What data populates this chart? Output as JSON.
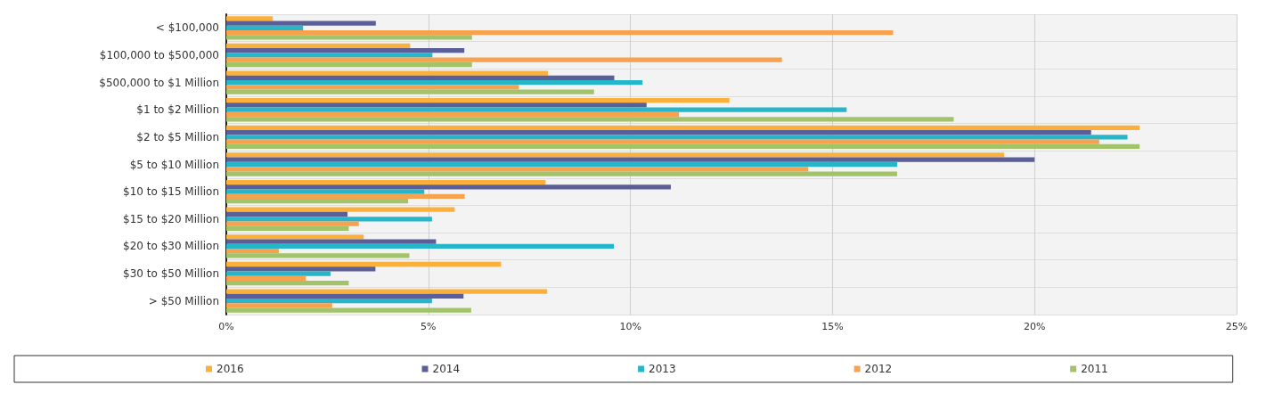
{
  "chart_data": {
    "type": "bar",
    "orientation": "horizontal",
    "categories": [
      "< $100,000",
      "$100,000 to $500,000",
      "$500,000 to $1 Million",
      "$1 to $2 Million",
      "$2 to $5 Million",
      "$5 to $10 Million",
      "$10 to $15 Million",
      "$15 to $20 Million",
      "$20 to $30 Million",
      "$30 to $50 Million",
      "> $50 Million"
    ],
    "series": [
      {
        "name": "2016",
        "color": "#fbb03b",
        "values": [
          1.15,
          4.55,
          7.96,
          12.45,
          22.6,
          19.25,
          7.9,
          5.65,
          3.4,
          6.8,
          7.94
        ]
      },
      {
        "name": "2014",
        "color": "#5b5f97",
        "values": [
          3.7,
          5.89,
          9.6,
          10.4,
          21.4,
          20.0,
          11.0,
          3.0,
          5.19,
          3.69,
          5.87
        ]
      },
      {
        "name": "2013",
        "color": "#27b6c9",
        "values": [
          1.9,
          5.1,
          10.3,
          15.35,
          22.3,
          16.6,
          4.9,
          5.09,
          9.59,
          2.58,
          5.09
        ]
      },
      {
        "name": "2012",
        "color": "#f7a24f",
        "values": [
          16.5,
          13.75,
          7.24,
          11.2,
          21.6,
          14.4,
          5.9,
          3.28,
          1.3,
          1.97,
          2.62
        ]
      },
      {
        "name": "2011",
        "color": "#a2c36a",
        "values": [
          6.08,
          6.08,
          9.1,
          18.0,
          22.6,
          16.6,
          4.5,
          3.03,
          4.53,
          3.03,
          6.06
        ]
      }
    ],
    "xlim": [
      0,
      25
    ],
    "xticks": [
      {
        "value": 0,
        "label": "0%"
      },
      {
        "value": 5,
        "label": "5%"
      },
      {
        "value": 10,
        "label": "10%"
      },
      {
        "value": 15,
        "label": "15%"
      },
      {
        "value": 20,
        "label": "20%"
      },
      {
        "value": 25,
        "label": "25%"
      }
    ],
    "grid": true,
    "legend": "bottom"
  }
}
